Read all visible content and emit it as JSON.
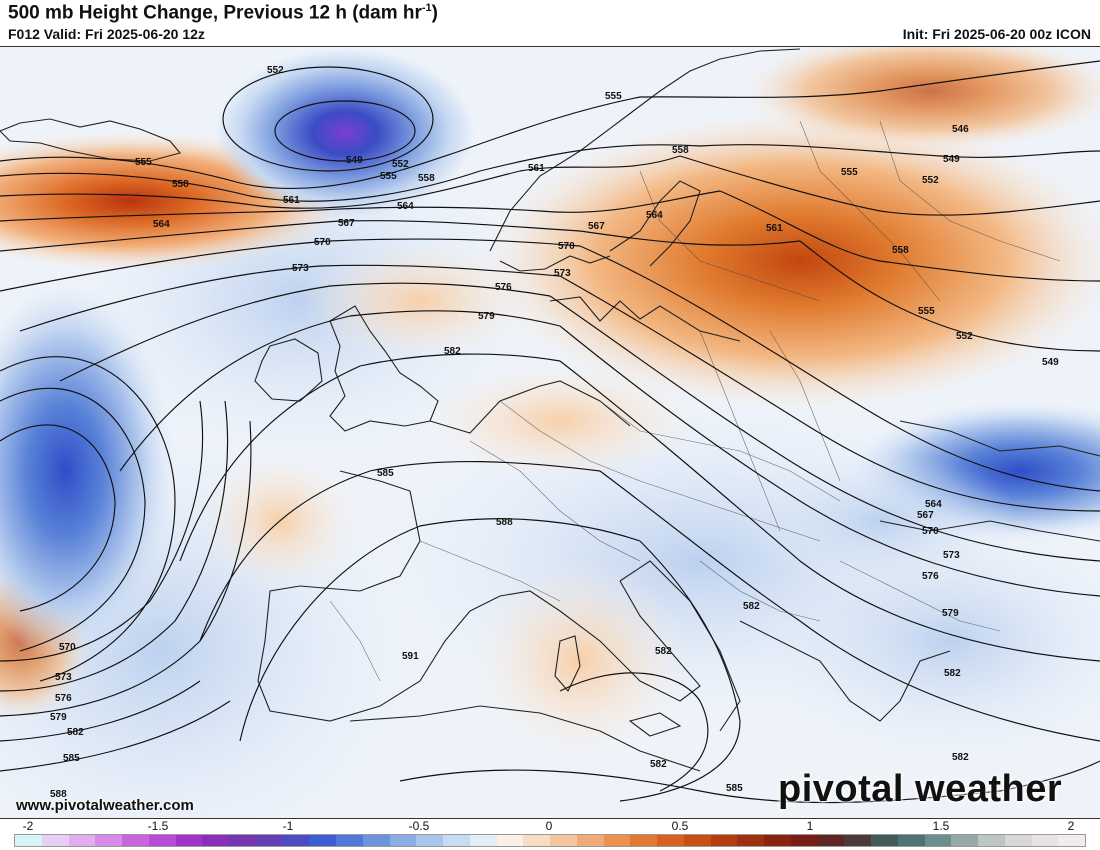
{
  "header": {
    "title_main": "500 mb Height Change, Previous 12 h (dam hr",
    "title_sup": "-1",
    "title_end": ")",
    "valid": "F012 Valid: Fri 2025-06-20 12z",
    "init": "Init: Fri 2025-06-20 00z ICON"
  },
  "footer": {
    "website": "www.pivotalweather.com",
    "brand": "pivotal weather"
  },
  "colorbar": {
    "tick_labels": [
      "-2",
      "-1.5",
      "-1",
      "-0.5",
      "0",
      "0.5",
      "1",
      "1.5",
      "2"
    ],
    "colors": [
      "#d6f3f8",
      "#e8cdf5",
      "#e2aef0",
      "#d78be8",
      "#c865de",
      "#b84ad6",
      "#a233c8",
      "#8a2fba",
      "#7536b0",
      "#6341b5",
      "#4c4cc4",
      "#3d5ed2",
      "#4f79d9",
      "#6c93de",
      "#8aaee4",
      "#a8c6ec",
      "#c6dcf3",
      "#e2edf8",
      "#fbf0e6",
      "#f8dcc4",
      "#f5c59e",
      "#f1ab77",
      "#ec9150",
      "#e47833",
      "#d8611f",
      "#c94e14",
      "#b43e10",
      "#9e2f0f",
      "#8a2410",
      "#761d14",
      "#5f2424",
      "#4c3a3a",
      "#445a58",
      "#4d7472",
      "#6b8f8c",
      "#95aaa8",
      "#bdc6c4",
      "#d9d6d6",
      "#e8e2e2",
      "#f1ecec"
    ]
  },
  "map": {
    "contour_unit": "dam",
    "contour_labels": [
      "552",
      "549",
      "552",
      "555",
      "558",
      "555",
      "558",
      "561",
      "564",
      "555",
      "558",
      "561",
      "564",
      "567",
      "570",
      "573",
      "576",
      "579",
      "582",
      "585",
      "588",
      "591",
      "582",
      "585",
      "582",
      "570",
      "573",
      "576",
      "579",
      "582",
      "585",
      "588",
      "546",
      "549",
      "552",
      "555",
      "558",
      "561",
      "564",
      "567",
      "570",
      "573",
      "555",
      "552",
      "549",
      "564",
      "567",
      "570",
      "573",
      "576",
      "579",
      "582",
      "582",
      "582"
    ],
    "height_change_areas": [
      {
        "name": "north-atlantic-low",
        "sign": "fall",
        "value": -1.4
      },
      {
        "name": "atlantic-west-low",
        "sign": "fall",
        "value": -1.0
      },
      {
        "name": "greenland-sea-rise",
        "sign": "rise",
        "value": 0.9
      },
      {
        "name": "scandinavia-baltic-rise",
        "sign": "rise",
        "value": 0.9
      },
      {
        "name": "black-sea-fall",
        "sign": "fall",
        "value": -0.9
      },
      {
        "name": "portugal-rise",
        "sign": "rise",
        "value": 0.6
      }
    ]
  }
}
